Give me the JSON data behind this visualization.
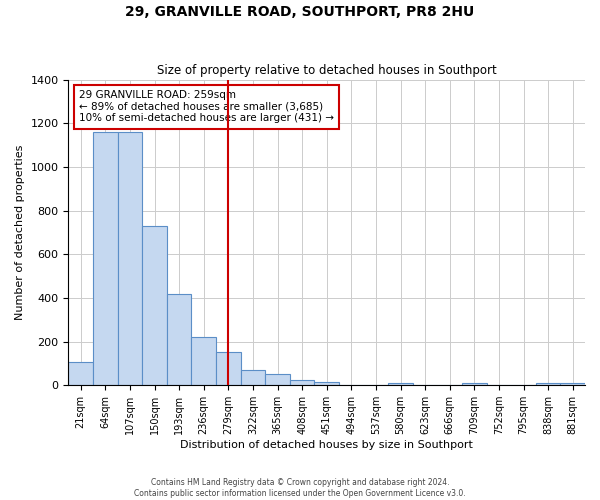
{
  "title": "29, GRANVILLE ROAD, SOUTHPORT, PR8 2HU",
  "subtitle": "Size of property relative to detached houses in Southport",
  "xlabel": "Distribution of detached houses by size in Southport",
  "ylabel": "Number of detached properties",
  "bin_labels": [
    "21sqm",
    "64sqm",
    "107sqm",
    "150sqm",
    "193sqm",
    "236sqm",
    "279sqm",
    "322sqm",
    "365sqm",
    "408sqm",
    "451sqm",
    "494sqm",
    "537sqm",
    "580sqm",
    "623sqm",
    "666sqm",
    "709sqm",
    "752sqm",
    "795sqm",
    "838sqm",
    "881sqm"
  ],
  "bar_values": [
    107,
    1160,
    1160,
    730,
    420,
    220,
    150,
    70,
    50,
    25,
    15,
    0,
    0,
    10,
    0,
    0,
    10,
    0,
    0,
    10,
    10
  ],
  "bar_color": "#c5d8f0",
  "bar_edge_color": "#5b8ec7",
  "vline_x": 6,
  "vline_color": "#cc0000",
  "annotation_line1": "29 GRANVILLE ROAD: 259sqm",
  "annotation_line2": "← 89% of detached houses are smaller (3,685)",
  "annotation_line3": "10% of semi-detached houses are larger (431) →",
  "annotation_box_edge_color": "#cc0000",
  "annotation_box_facecolor": "#ffffff",
  "ylim": [
    0,
    1400
  ],
  "yticks": [
    0,
    200,
    400,
    600,
    800,
    1000,
    1200,
    1400
  ],
  "grid_color": "#cccccc",
  "footer_text": "Contains HM Land Registry data © Crown copyright and database right 2024.\nContains public sector information licensed under the Open Government Licence v3.0.",
  "bg_color": "#ffffff",
  "fig_width": 6.0,
  "fig_height": 5.0
}
